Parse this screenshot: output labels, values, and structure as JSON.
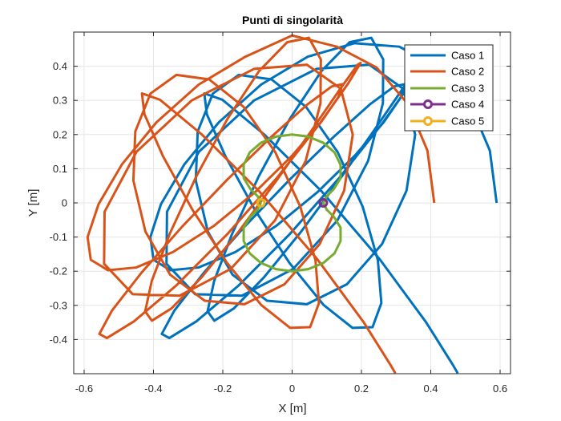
{
  "chart_data": {
    "type": "line",
    "title": "Punti di singolarità",
    "xlabel": "X [m]",
    "ylabel": "Y [m]",
    "xlim": [
      -0.63,
      0.63
    ],
    "ylim": [
      -0.5,
      0.5
    ],
    "xticks": [
      -0.6,
      -0.4,
      -0.2,
      0,
      0.2,
      0.4,
      0.6
    ],
    "xtick_labels": [
      "-0.6",
      "-0.4",
      "-0.2",
      "0",
      "0.2",
      "0.4",
      "0.6"
    ],
    "yticks": [
      -0.4,
      -0.3,
      -0.2,
      -0.1,
      0,
      0.1,
      0.2,
      0.3,
      0.4
    ],
    "ytick_labels": [
      "-0.4",
      "-0.3",
      "-0.2",
      "-0.1",
      "0",
      "0.1",
      "0.2",
      "0.3",
      "0.4"
    ],
    "grid": true,
    "legend_position": "top-right",
    "series": [
      {
        "name": "Caso 1",
        "color": "#0072BD",
        "marker": "none",
        "x": [
          0.59,
          0.5704,
          0.5132,
          0.4236,
          0.309,
          0.18,
          0.0451,
          -0.0896,
          -0.2113,
          -0.3104,
          -0.3784,
          -0.4089,
          -0.3998,
          -0.3514,
          -0.2699,
          -0.1636,
          -0.0451,
          0.0736,
          0.1809,
          0.2642,
          0.3144,
          0.3253,
          0.2947,
          0.2245,
          0.121,
          -0.0055,
          -0.1374,
          -0.2549,
          -0.3399,
          -0.376,
          -0.3543,
          -0.276,
          -0.1532,
          -0.008,
          0.1368,
          0.2585,
          0.3412,
          0.3776,
          0.3688,
          0.3196,
          0.2386,
          0.1364,
          0.0256,
          -0.0804,
          -0.1679,
          -0.2246,
          -0.2439,
          -0.2249,
          -0.1726,
          -0.096,
          -0.0063,
          0.0845,
          0.166,
          0.2283,
          0.2628,
          0.2619,
          0.2191,
          0.1306,
          0.0032,
          -0.1448,
          -0.28,
          -0.3624,
          -0.361,
          -0.2691,
          -0.1094,
          0.0701,
          0.2226,
          0.3205,
          0.3549,
          0.33,
          0.2594,
          0.158,
          0.0424,
          -0.0723,
          -0.1718,
          -0.2432,
          -0.2779,
          -0.2724,
          -0.2287,
          -0.1538,
          -0.0594,
          0.04,
          0.1314,
          0.2036,
          0.2474,
          0.2574,
          0.232,
          0.1743,
          0.0909,
          -0.008,
          -0.1078,
          -0.1924,
          -0.246,
          -0.2533,
          -0.2012,
          -0.0814,
          0.0851,
          0.2533,
          0.3869,
          0.4625,
          0.4778
        ],
        "y": [
          0,
          0.1531,
          0.2905,
          0.3963,
          0.4573,
          0.4675,
          0.4279,
          0.3462,
          0.2359,
          0.1135,
          -0.0038,
          -0.1002,
          -0.1666,
          -0.1971,
          -0.1891,
          -0.1438,
          -0.0668,
          0.0319,
          0.1383,
          0.2361,
          0.31,
          0.3476,
          0.3411,
          0.2885,
          0.1943,
          0.0697,
          -0.0697,
          -0.2048,
          -0.3155,
          -0.3836,
          -0.3957,
          -0.3467,
          -0.2409,
          -0.0926,
          0.074,
          0.2304,
          0.3489,
          0.4098,
          0.4043,
          0.3351,
          0.2155,
          0.0674,
          -0.0846,
          -0.2169,
          -0.3088,
          -0.3449,
          -0.3175,
          -0.2285,
          -0.0894,
          0.0783,
          0.2464,
          0.3856,
          0.4704,
          0.4833,
          0.42,
          0.2916,
          0.1227,
          -0.0513,
          -0.1932,
          -0.2717,
          -0.2672,
          -0.1783,
          -0.026,
          0.1493,
          0.3001,
          0.3922,
          0.4045,
          0.3343,
          0.1998,
          0.0359,
          -0.1207,
          -0.2383,
          -0.2967,
          -0.2865,
          -0.2103,
          -0.084,
          0.0653,
          0.2092,
          0.3199,
          0.3747,
          0.3615,
          0.2812,
          0.1484,
          -0.0113,
          -0.1682,
          -0.2933,
          -0.3637,
          -0.366,
          -0.2989,
          -0.1752,
          -0.0197,
          0.1364,
          0.2594,
          0.3205,
          0.3019,
          0.201,
          0.0339,
          -0.1658,
          -0.3501,
          -0.4722,
          -0.4987
        ]
      },
      {
        "name": "Caso 2",
        "color": "#D95319",
        "marker": "none",
        "x": [
          0.41,
          0.3904,
          0.3332,
          0.2436,
          0.129,
          0.0,
          -0.1349,
          -0.2696,
          -0.3913,
          -0.4904,
          -0.5584,
          -0.59,
          -0.5808,
          -0.5314,
          -0.4498,
          -0.3436,
          -0.225,
          -0.1064,
          0.0,
          0.0833,
          0.1335,
          0.1452,
          0.1147,
          0.0445,
          -0.059,
          -0.1855,
          -0.3174,
          -0.4349,
          -0.5199,
          -0.556,
          -0.5343,
          -0.456,
          -0.3332,
          -0.188,
          -0.0432,
          0.0785,
          0.1612,
          0.1976,
          0.1888,
          0.1396,
          0.0586,
          -0.0436,
          -0.1544,
          -0.2604,
          -0.3479,
          -0.4046,
          -0.4239,
          -0.4049,
          -0.3526,
          -0.276,
          -0.1863,
          -0.0955,
          -0.014,
          0.0483,
          0.0828,
          0.0819,
          0.0391,
          -0.0494,
          -0.1768,
          -0.3248,
          -0.46,
          -0.5424,
          -0.541,
          -0.4491,
          -0.2894,
          -0.1099,
          0.0426,
          0.1405,
          0.1749,
          0.15,
          0.0794,
          -0.022,
          -0.1376,
          -0.2523,
          -0.3518,
          -0.4232,
          -0.4579,
          -0.4524,
          -0.4087,
          -0.3338,
          -0.2394,
          -0.14,
          -0.0486,
          0.0236,
          0.0674,
          0.0774,
          0.052,
          -0.0057,
          -0.0891,
          -0.188,
          -0.2878,
          -0.3724,
          -0.426,
          -0.4333,
          -0.3812,
          -0.2614,
          -0.0949,
          0.0733,
          0.2069,
          0.2825,
          0.2978
        ],
        "y": [
          0,
          0.1531,
          0.2905,
          0.3963,
          0.4573,
          0.49,
          0.4279,
          0.3462,
          0.2359,
          0.1135,
          -0.0038,
          -0.1002,
          -0.1666,
          -0.1971,
          -0.1891,
          -0.1438,
          -0.0668,
          0.0319,
          0.1383,
          0.2361,
          0.31,
          0.3476,
          0.3411,
          0.2885,
          0.1943,
          0.0697,
          -0.0697,
          -0.2048,
          -0.3155,
          -0.3836,
          -0.3957,
          -0.3467,
          -0.2409,
          -0.0926,
          0.074,
          0.2304,
          0.3489,
          0.4098,
          0.4043,
          0.3351,
          0.2155,
          0.0674,
          -0.0846,
          -0.2169,
          -0.3088,
          -0.3449,
          -0.3175,
          -0.2285,
          -0.0894,
          0.0783,
          0.2464,
          0.3856,
          0.4704,
          0.4833,
          0.42,
          0.2916,
          0.1227,
          -0.0513,
          -0.1932,
          -0.2717,
          -0.2672,
          -0.1783,
          -0.026,
          0.1493,
          0.3001,
          0.3922,
          0.4045,
          0.3343,
          0.1998,
          0.0359,
          -0.1207,
          -0.2383,
          -0.2967,
          -0.2865,
          -0.2103,
          -0.084,
          0.0653,
          0.2092,
          0.3199,
          0.3747,
          0.3615,
          0.2812,
          0.1484,
          -0.0113,
          -0.1682,
          -0.2933,
          -0.3637,
          -0.366,
          -0.2989,
          -0.1752,
          -0.0197,
          0.1364,
          0.2594,
          0.3205,
          0.3019,
          0.201,
          0.0339,
          -0.1658,
          -0.3501,
          -0.4722,
          -0.4987
        ]
      },
      {
        "name": "Caso 3",
        "color": "#77AC30",
        "marker": "none",
        "x": [
          -0.09,
          -0.1,
          -0.12,
          -0.1397,
          -0.1398,
          -0.1224,
          -0.09,
          -0.0466,
          0.0,
          0.0466,
          0.09,
          0.1224,
          0.1398,
          0.1397,
          0.12,
          0.1,
          0.09,
          0.1,
          0.12,
          0.1397,
          0.1398,
          0.1224,
          0.09,
          0.0466,
          0.0,
          -0.0466,
          -0.09,
          -0.1224,
          -0.1398,
          -0.1397,
          -0.12,
          -0.1,
          -0.09
        ],
        "y": [
          0,
          0.02,
          0.04,
          0.0724,
          0.1112,
          0.1476,
          0.1759,
          0.1939,
          0.2,
          0.1939,
          0.1759,
          0.1476,
          0.1112,
          0.0724,
          0.04,
          0.02,
          0,
          -0.02,
          -0.04,
          -0.0724,
          -0.1112,
          -0.1476,
          -0.1759,
          -0.1939,
          -0.2,
          -0.1939,
          -0.1759,
          -0.1476,
          -0.1112,
          -0.0724,
          -0.04,
          -0.02,
          0
        ]
      },
      {
        "name": "Caso 4",
        "color": "#7E2F8E",
        "marker": "o",
        "x": [
          0.09
        ],
        "y": [
          0
        ]
      },
      {
        "name": "Caso 5",
        "color": "#EDB120",
        "marker": "o",
        "x": [
          -0.09
        ],
        "y": [
          0
        ]
      }
    ]
  }
}
